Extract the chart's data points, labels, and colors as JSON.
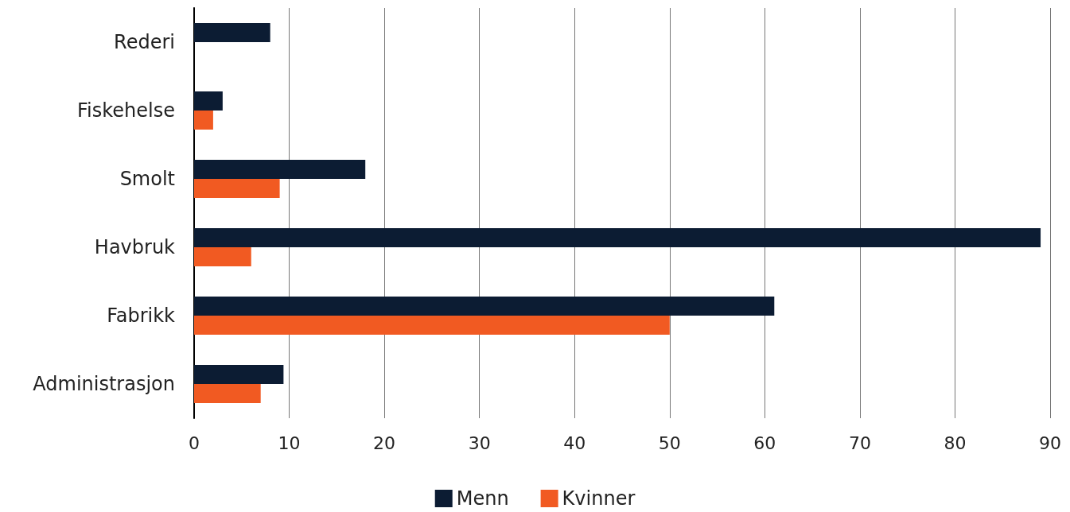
{
  "chart_data": {
    "type": "bar",
    "orientation": "horizontal",
    "categories": [
      "Rederi",
      "Fiskehelse",
      "Smolt",
      "Havbruk",
      "Fabrikk",
      "Administrasjon"
    ],
    "series": [
      {
        "name": "Menn",
        "color": "#0c1c33",
        "values": [
          8,
          3,
          18,
          89,
          61,
          9.4
        ]
      },
      {
        "name": "Kvinner",
        "color": "#f15a22",
        "values": [
          0,
          2,
          9,
          6,
          50,
          7
        ]
      }
    ],
    "xlim": [
      0,
      90
    ],
    "xticks": [
      0,
      10,
      20,
      30,
      40,
      50,
      60,
      70,
      80,
      90
    ],
    "grid": "x",
    "legend": "bottom"
  }
}
